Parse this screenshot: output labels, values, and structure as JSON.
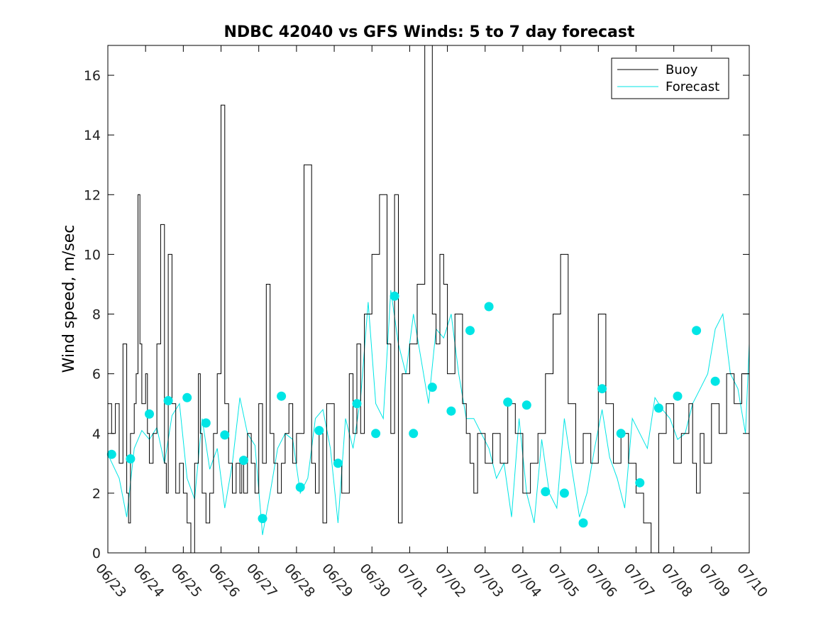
{
  "chart_data": {
    "type": "line",
    "title": "NDBC 42040 vs GFS Winds: 5 to 7 day forecast",
    "xlabel": "",
    "ylabel": "Wind speed, m/sec",
    "xlim": [
      "06/23",
      "07/10"
    ],
    "ylim": [
      0,
      17
    ],
    "x_ticks": [
      "06/23",
      "06/24",
      "06/25",
      "06/26",
      "06/27",
      "06/28",
      "06/29",
      "06/30",
      "07/01",
      "07/02",
      "07/03",
      "07/04",
      "07/05",
      "07/06",
      "07/07",
      "07/08",
      "07/09",
      "07/10"
    ],
    "y_ticks": [
      0,
      2,
      4,
      6,
      8,
      10,
      12,
      14,
      16
    ],
    "grid": false,
    "legend_position": "top-right",
    "colors": {
      "buoy": "#000000",
      "forecast": "#00e5e5",
      "markers": "#00e5e5"
    },
    "series": [
      {
        "name": "Buoy",
        "x_day_offset": [
          0.0,
          0.1,
          0.2,
          0.3,
          0.35,
          0.4,
          0.5,
          0.55,
          0.6,
          0.7,
          0.75,
          0.8,
          0.85,
          0.9,
          1.0,
          1.05,
          1.1,
          1.2,
          1.3,
          1.4,
          1.5,
          1.55,
          1.6,
          1.7,
          1.8,
          1.9,
          2.0,
          2.1,
          2.2,
          2.3,
          2.4,
          2.45,
          2.5,
          2.6,
          2.7,
          2.8,
          2.9,
          3.0,
          3.1,
          3.2,
          3.3,
          3.4,
          3.5,
          3.55,
          3.6,
          3.7,
          3.8,
          3.9,
          4.0,
          4.1,
          4.2,
          4.3,
          4.4,
          4.5,
          4.6,
          4.7,
          4.8,
          4.9,
          5.0,
          5.2,
          5.4,
          5.5,
          5.6,
          5.7,
          5.8,
          6.0,
          6.2,
          6.4,
          6.5,
          6.6,
          6.7,
          6.8,
          7.0,
          7.2,
          7.4,
          7.5,
          7.6,
          7.7,
          7.8,
          8.0,
          8.2,
          8.4,
          8.6,
          8.7,
          8.8,
          8.9,
          9.0,
          9.2,
          9.4,
          9.5,
          9.6,
          9.7,
          9.8,
          10.0,
          10.2,
          10.4,
          10.6,
          10.8,
          11.0,
          11.2,
          11.4,
          11.6,
          11.8,
          12.0,
          12.2,
          12.4,
          12.6,
          12.8,
          13.0,
          13.2,
          13.4,
          13.6,
          13.8,
          14.0,
          14.2,
          14.4,
          14.6,
          14.8,
          15.0,
          15.2,
          15.4,
          15.5,
          15.6,
          15.7,
          15.8,
          16.0,
          16.2,
          16.4,
          16.6,
          16.8,
          17.0
        ],
        "values": [
          5,
          4,
          5,
          3,
          3,
          7,
          2,
          1,
          4,
          5,
          6,
          12,
          7,
          5,
          6,
          4,
          3,
          4,
          7,
          11,
          3,
          2,
          10,
          5,
          2,
          3,
          2,
          1,
          0,
          3,
          6,
          4,
          2,
          1,
          2,
          4,
          6,
          15,
          5,
          3,
          2,
          3,
          2,
          3,
          2,
          4,
          3,
          2,
          5,
          3,
          9,
          4,
          3,
          2,
          3,
          4,
          5,
          3,
          4,
          13,
          3,
          2,
          4,
          1,
          5,
          3,
          2,
          6,
          4,
          7,
          4,
          8,
          10,
          12,
          7,
          4,
          12,
          1,
          6,
          7,
          9,
          17,
          8,
          7,
          10,
          9,
          6,
          8,
          5,
          4,
          3,
          2,
          4,
          3,
          4,
          3,
          5,
          4,
          2,
          3,
          4,
          6,
          8,
          10,
          5,
          3,
          4,
          3,
          8,
          5,
          3,
          4,
          3,
          2,
          1,
          0,
          4,
          5,
          3,
          4,
          5,
          3,
          2,
          4,
          3,
          5,
          4,
          6,
          5,
          6,
          4
        ]
      },
      {
        "name": "Forecast",
        "x_day_offset": [
          0.0,
          0.3,
          0.5,
          0.7,
          0.9,
          1.1,
          1.3,
          1.5,
          1.7,
          1.9,
          2.1,
          2.3,
          2.5,
          2.7,
          2.9,
          3.1,
          3.3,
          3.5,
          3.7,
          3.9,
          4.1,
          4.3,
          4.5,
          4.7,
          4.9,
          5.1,
          5.3,
          5.5,
          5.7,
          5.9,
          6.1,
          6.3,
          6.5,
          6.7,
          6.9,
          7.1,
          7.3,
          7.5,
          7.7,
          7.9,
          8.1,
          8.3,
          8.5,
          8.7,
          8.9,
          9.1,
          9.3,
          9.5,
          9.7,
          9.9,
          10.1,
          10.3,
          10.5,
          10.7,
          10.9,
          11.1,
          11.3,
          11.5,
          11.7,
          11.9,
          12.1,
          12.3,
          12.5,
          12.7,
          12.9,
          13.1,
          13.3,
          13.5,
          13.7,
          13.9,
          14.1,
          14.3,
          14.5,
          14.7,
          14.9,
          15.1,
          15.3,
          15.5,
          15.7,
          15.9,
          16.1,
          16.3,
          16.5,
          16.7,
          16.9,
          17.0
        ],
        "values": [
          3.3,
          2.5,
          1.2,
          3.5,
          4.1,
          3.8,
          4.2,
          3.0,
          4.6,
          5.0,
          2.5,
          1.8,
          4.5,
          2.8,
          3.5,
          1.5,
          3.0,
          5.2,
          4.0,
          3.6,
          0.6,
          2.0,
          3.5,
          4.0,
          3.8,
          2.0,
          2.5,
          4.5,
          4.8,
          3.5,
          1.0,
          4.5,
          3.5,
          5.2,
          8.4,
          5.0,
          4.5,
          8.8,
          7.0,
          6.0,
          8.0,
          6.5,
          5.0,
          7.5,
          7.2,
          8.0,
          6.0,
          4.5,
          4.5,
          4.0,
          3.5,
          2.5,
          3.0,
          1.2,
          4.5,
          2.0,
          1.0,
          3.8,
          2.0,
          1.5,
          4.5,
          2.8,
          1.2,
          2.0,
          3.5,
          4.8,
          3.2,
          2.5,
          1.5,
          4.5,
          4.0,
          3.5,
          5.2,
          4.8,
          4.5,
          3.8,
          4.0,
          5.0,
          5.5,
          6.0,
          7.5,
          8.0,
          6.0,
          5.5,
          4.0,
          7.0
        ]
      }
    ],
    "markers": {
      "name": "Forecast points",
      "x_day_offset": [
        0.1,
        0.6,
        1.1,
        1.6,
        2.1,
        2.6,
        3.1,
        3.6,
        4.1,
        4.6,
        5.1,
        5.6,
        6.1,
        6.6,
        7.1,
        7.6,
        8.1,
        8.6,
        9.1,
        9.6,
        10.1,
        10.6,
        11.1,
        11.6,
        12.1,
        12.6,
        13.1,
        13.6,
        14.1,
        14.6,
        15.1,
        15.6,
        16.1,
        16.6
      ],
      "values": [
        3.3,
        3.15,
        4.65,
        5.1,
        5.2,
        4.35,
        3.95,
        3.1,
        1.15,
        5.25,
        2.2,
        4.1,
        3.0,
        5.0,
        4.0,
        8.6,
        4.0,
        5.55,
        4.75,
        7.45,
        8.25,
        5.05,
        4.95,
        2.05,
        2.0,
        1.0,
        5.5,
        4.0,
        2.35,
        4.85,
        5.25,
        7.45,
        5.75,
        null
      ]
    }
  },
  "legend": {
    "buoy_label": "Buoy",
    "forecast_label": "Forecast"
  }
}
